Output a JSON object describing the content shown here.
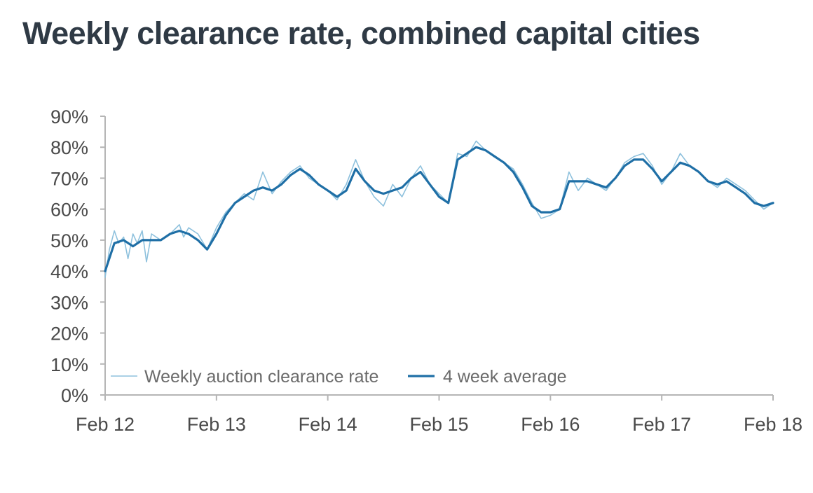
{
  "chart_data": {
    "type": "line",
    "title": "Weekly clearance rate, combined capital cities",
    "xlabel": "",
    "ylabel": "",
    "x_tick_labels": [
      "Feb 12",
      "Feb 13",
      "Feb 14",
      "Feb 15",
      "Feb 16",
      "Feb 17",
      "Feb 18"
    ],
    "y_tick_labels": [
      "0%",
      "10%",
      "20%",
      "30%",
      "40%",
      "50%",
      "60%",
      "70%",
      "80%",
      "90%"
    ],
    "xlim": [
      "2012-02",
      "2018-02"
    ],
    "ylim": [
      0,
      90
    ],
    "grid": false,
    "legend_position": "bottom-left",
    "series": [
      {
        "name": "Weekly auction clearance rate",
        "color": "#8ec1dd",
        "points": [
          [
            "2012-02",
            38
          ],
          [
            "2012-02-15",
            47
          ],
          [
            "2012-03",
            53
          ],
          [
            "2012-03-15",
            49
          ],
          [
            "2012-04",
            51
          ],
          [
            "2012-04-15",
            44
          ],
          [
            "2012-05",
            52
          ],
          [
            "2012-05-15",
            49
          ],
          [
            "2012-06",
            53
          ],
          [
            "2012-06-15",
            43
          ],
          [
            "2012-07",
            52
          ],
          [
            "2012-08",
            50
          ],
          [
            "2012-09",
            52
          ],
          [
            "2012-10",
            55
          ],
          [
            "2012-10-15",
            51
          ],
          [
            "2012-11",
            54
          ],
          [
            "2012-12",
            52
          ],
          [
            "2013-01",
            47
          ],
          [
            "2013-02",
            54
          ],
          [
            "2013-03",
            59
          ],
          [
            "2013-04",
            62
          ],
          [
            "2013-05",
            65
          ],
          [
            "2013-06",
            63
          ],
          [
            "2013-07",
            72
          ],
          [
            "2013-08",
            65
          ],
          [
            "2013-09",
            69
          ],
          [
            "2013-10",
            72
          ],
          [
            "2013-11",
            74
          ],
          [
            "2013-12",
            70
          ],
          [
            "2014-01",
            68
          ],
          [
            "2014-02",
            66
          ],
          [
            "2014-03",
            63
          ],
          [
            "2014-04",
            68
          ],
          [
            "2014-05",
            76
          ],
          [
            "2014-06",
            69
          ],
          [
            "2014-07",
            64
          ],
          [
            "2014-08",
            61
          ],
          [
            "2014-09",
            68
          ],
          [
            "2014-10",
            64
          ],
          [
            "2014-11",
            70
          ],
          [
            "2014-12",
            74
          ],
          [
            "2015-01",
            68
          ],
          [
            "2015-02",
            65
          ],
          [
            "2015-03",
            62
          ],
          [
            "2015-04",
            78
          ],
          [
            "2015-05",
            77
          ],
          [
            "2015-06",
            82
          ],
          [
            "2015-07",
            79
          ],
          [
            "2015-08",
            77
          ],
          [
            "2015-09",
            75
          ],
          [
            "2015-10",
            73
          ],
          [
            "2015-11",
            68
          ],
          [
            "2015-12",
            62
          ],
          [
            "2016-01",
            57
          ],
          [
            "2016-02",
            58
          ],
          [
            "2016-03",
            60
          ],
          [
            "2016-04",
            72
          ],
          [
            "2016-05",
            66
          ],
          [
            "2016-06",
            70
          ],
          [
            "2016-07",
            68
          ],
          [
            "2016-08",
            66
          ],
          [
            "2016-09",
            70
          ],
          [
            "2016-10",
            75
          ],
          [
            "2016-11",
            77
          ],
          [
            "2016-12",
            78
          ],
          [
            "2017-01",
            74
          ],
          [
            "2017-02",
            68
          ],
          [
            "2017-03",
            72
          ],
          [
            "2017-04",
            78
          ],
          [
            "2017-05",
            74
          ],
          [
            "2017-06",
            72
          ],
          [
            "2017-07",
            69
          ],
          [
            "2017-08",
            67
          ],
          [
            "2017-09",
            70
          ],
          [
            "2017-10",
            68
          ],
          [
            "2017-11",
            66
          ],
          [
            "2017-12",
            63
          ],
          [
            "2018-01",
            60
          ],
          [
            "2018-02",
            62
          ]
        ]
      },
      {
        "name": "4 week average",
        "color": "#1f6fa6",
        "points": [
          [
            "2012-02",
            40
          ],
          [
            "2012-03",
            49
          ],
          [
            "2012-04",
            50
          ],
          [
            "2012-05",
            48
          ],
          [
            "2012-06",
            50
          ],
          [
            "2012-07",
            50
          ],
          [
            "2012-08",
            50
          ],
          [
            "2012-09",
            52
          ],
          [
            "2012-10",
            53
          ],
          [
            "2012-11",
            52
          ],
          [
            "2012-12",
            50
          ],
          [
            "2013-01",
            47
          ],
          [
            "2013-02",
            52
          ],
          [
            "2013-03",
            58
          ],
          [
            "2013-04",
            62
          ],
          [
            "2013-05",
            64
          ],
          [
            "2013-06",
            66
          ],
          [
            "2013-07",
            67
          ],
          [
            "2013-08",
            66
          ],
          [
            "2013-09",
            68
          ],
          [
            "2013-10",
            71
          ],
          [
            "2013-11",
            73
          ],
          [
            "2013-12",
            71
          ],
          [
            "2014-01",
            68
          ],
          [
            "2014-02",
            66
          ],
          [
            "2014-03",
            64
          ],
          [
            "2014-04",
            66
          ],
          [
            "2014-05",
            73
          ],
          [
            "2014-06",
            69
          ],
          [
            "2014-07",
            66
          ],
          [
            "2014-08",
            65
          ],
          [
            "2014-09",
            66
          ],
          [
            "2014-10",
            67
          ],
          [
            "2014-11",
            70
          ],
          [
            "2014-12",
            72
          ],
          [
            "2015-01",
            68
          ],
          [
            "2015-02",
            64
          ],
          [
            "2015-03",
            62
          ],
          [
            "2015-04",
            76
          ],
          [
            "2015-05",
            78
          ],
          [
            "2015-06",
            80
          ],
          [
            "2015-07",
            79
          ],
          [
            "2015-08",
            77
          ],
          [
            "2015-09",
            75
          ],
          [
            "2015-10",
            72
          ],
          [
            "2015-11",
            67
          ],
          [
            "2015-12",
            61
          ],
          [
            "2016-01",
            59
          ],
          [
            "2016-02",
            59
          ],
          [
            "2016-03",
            60
          ],
          [
            "2016-04",
            69
          ],
          [
            "2016-05",
            69
          ],
          [
            "2016-06",
            69
          ],
          [
            "2016-07",
            68
          ],
          [
            "2016-08",
            67
          ],
          [
            "2016-09",
            70
          ],
          [
            "2016-10",
            74
          ],
          [
            "2016-11",
            76
          ],
          [
            "2016-12",
            76
          ],
          [
            "2017-01",
            73
          ],
          [
            "2017-02",
            69
          ],
          [
            "2017-03",
            72
          ],
          [
            "2017-04",
            75
          ],
          [
            "2017-05",
            74
          ],
          [
            "2017-06",
            72
          ],
          [
            "2017-07",
            69
          ],
          [
            "2017-08",
            68
          ],
          [
            "2017-09",
            69
          ],
          [
            "2017-10",
            67
          ],
          [
            "2017-11",
            65
          ],
          [
            "2017-12",
            62
          ],
          [
            "2018-01",
            61
          ],
          [
            "2018-02",
            62
          ]
        ]
      }
    ]
  }
}
